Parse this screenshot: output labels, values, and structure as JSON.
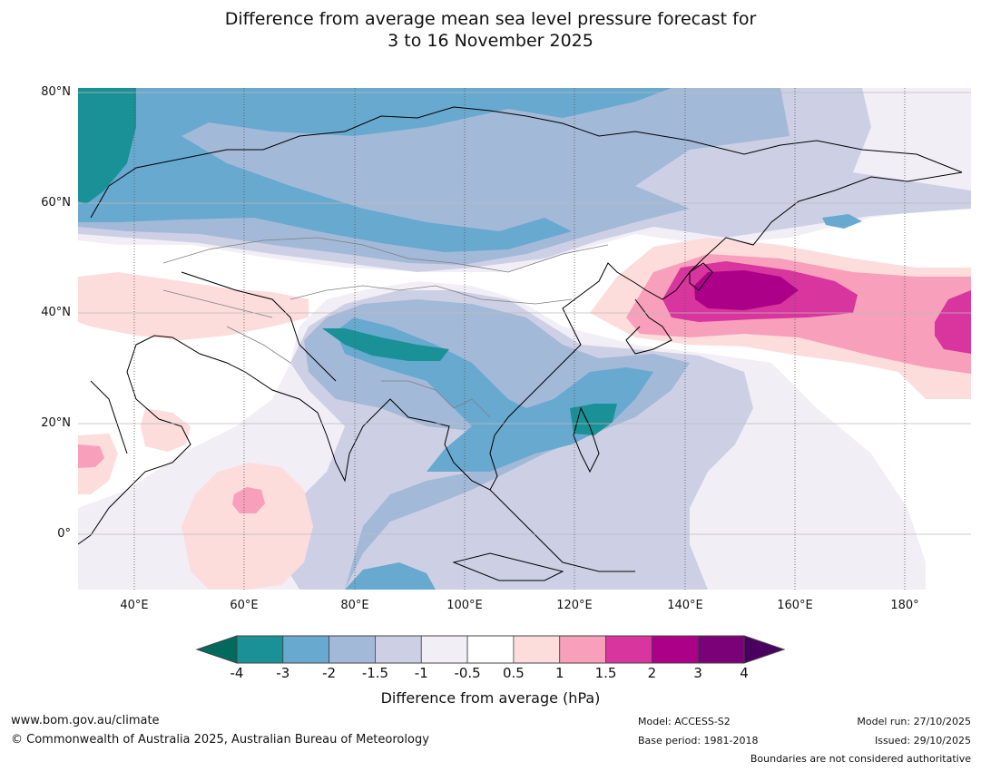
{
  "title": {
    "line1": "Difference from average mean sea level pressure forecast for",
    "line2": "3 to 16 November 2025"
  },
  "map": {
    "lat_labels": [
      "80°N",
      "60°N",
      "40°N",
      "20°N",
      "0°"
    ],
    "lon_labels": [
      "40°E",
      "60°E",
      "80°E",
      "100°E",
      "120°E",
      "140°E",
      "160°E",
      "180°"
    ],
    "region": "Asia and western Pacific",
    "land_color": "#ffffff",
    "coast_color": "#000000",
    "border_color": "#808080"
  },
  "colorbar": {
    "label": "Difference from average (hPa)",
    "ticks": [
      "-4",
      "-3",
      "-2",
      "-1.5",
      "-1",
      "-0.5",
      "0.5",
      "1",
      "1.5",
      "2",
      "3",
      "4"
    ],
    "colors": [
      "#006a5d",
      "#1a9196",
      "#68a9d0",
      "#a3b9d8",
      "#cdd0e5",
      "#f2eef6",
      "#ffffff",
      "#fddcdc",
      "#f79fbb",
      "#d8359e",
      "#ac0089",
      "#7a0177",
      "#4a0060"
    ]
  },
  "footer": {
    "website": "www.bom.gov.au/climate",
    "copyright": "© Commonwealth of Australia 2025, Australian Bureau of Meteorology",
    "model": "Model: ACCESS-S2",
    "base_period": "Base period: 1981-2018",
    "model_run": "Model run: 27/10/2025",
    "issued": "Issued: 29/10/2025",
    "disclaimer": "Boundaries are not considered authoritative"
  }
}
